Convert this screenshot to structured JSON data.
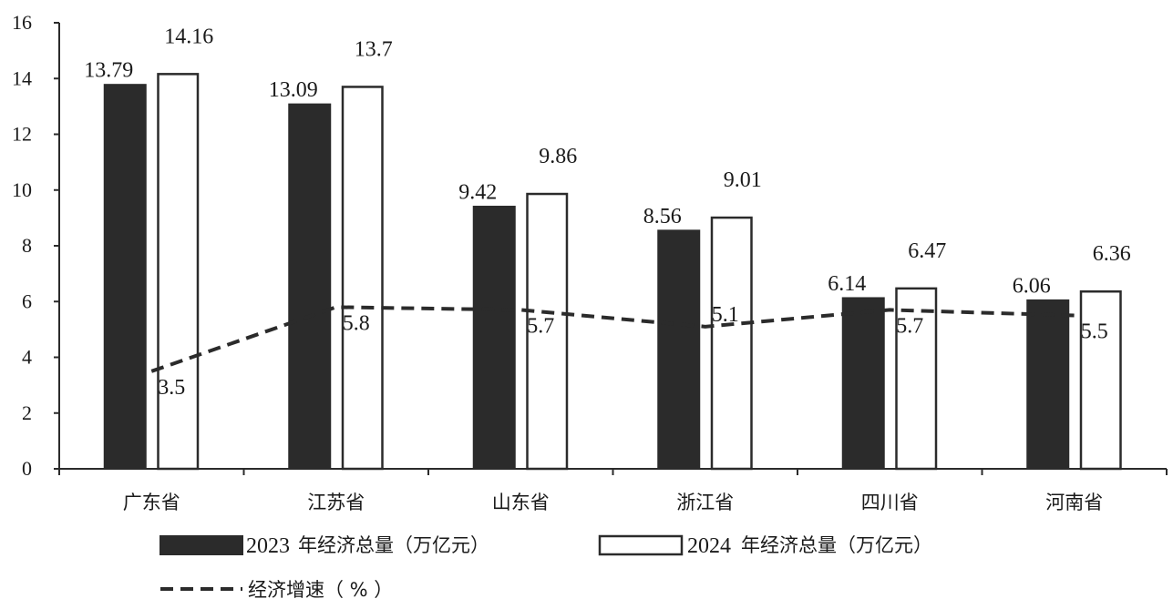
{
  "chart_data": {
    "type": "bar",
    "title": "",
    "xlabel": "",
    "ylabel": "",
    "ylim": [
      0,
      16
    ],
    "yticks": [
      0,
      2,
      4,
      6,
      8,
      10,
      12,
      14,
      16
    ],
    "categories": [
      "广东省",
      "江苏省",
      "山东省",
      "浙江省",
      "四川省",
      "河南省"
    ],
    "series": [
      {
        "name": "2023 年经济总量（万亿元）",
        "kind": "bar",
        "style": "filled",
        "color": "#2b2b2b",
        "values": [
          13.79,
          13.09,
          9.42,
          8.56,
          6.14,
          6.06
        ],
        "labels": [
          "13.79",
          "13.09",
          "9.42",
          "8.56",
          "6.14",
          "6.06"
        ]
      },
      {
        "name": "2024 年经济总量（万亿元）",
        "kind": "bar",
        "style": "outline",
        "color": "#ffffff",
        "values": [
          14.16,
          13.7,
          9.86,
          9.01,
          6.47,
          6.36
        ],
        "labels": [
          "14.16",
          "13.7",
          "9.86",
          "9.01",
          "6.47",
          "6.36"
        ]
      },
      {
        "name": "经济增速（%）",
        "kind": "line",
        "style": "dashed",
        "color": "#2b2b2b",
        "values": [
          3.5,
          5.8,
          5.7,
          5.1,
          5.7,
          5.5
        ],
        "labels": [
          "3.5",
          "5.8",
          "5.7",
          "5.1",
          "5.7",
          "5.5"
        ]
      }
    ],
    "legend": {
      "placement": "bottom",
      "items": [
        {
          "year": "2023",
          "text": "年经济总量（万亿元）"
        },
        {
          "year": "2024",
          "text": "年经济总量（万亿元）"
        },
        {
          "year": "",
          "text": "经济增速（ % ）"
        }
      ]
    },
    "grid": false
  }
}
